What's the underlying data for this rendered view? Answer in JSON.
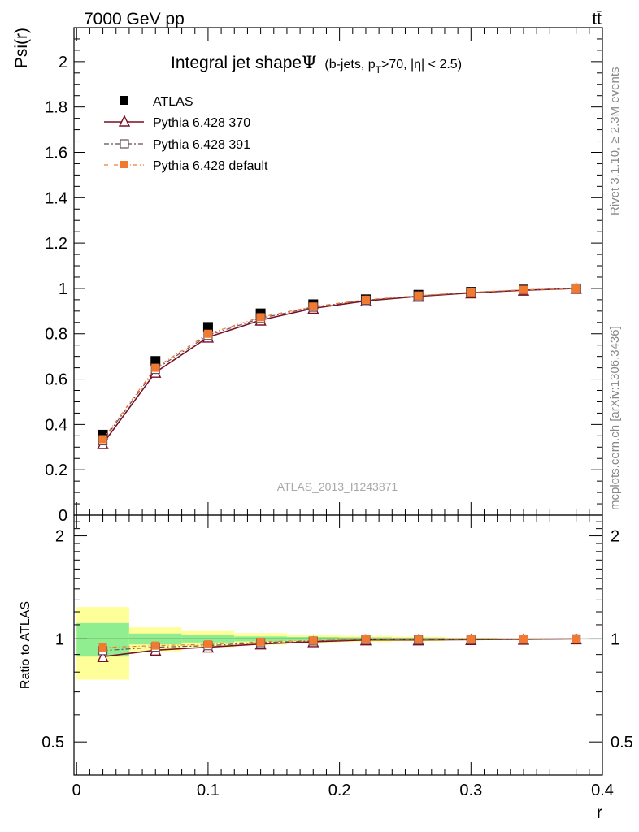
{
  "header": {
    "energy_label": "7000 GeV pp",
    "process_label": "tt̄",
    "side_label_top": "Rivet 3.1.10, ≥ 2.3M events",
    "side_label_bottom": "mcplots.cern.ch [arXiv:1306.3436]",
    "watermark": "ATLAS_2013_I1243871"
  },
  "chart_data": {
    "type": "line",
    "title_main": "Integral jet shape",
    "title_symbol": "Ψ",
    "title_cuts_prefix": "(b-jets, p",
    "title_cuts_sub": "T",
    "title_cuts_suffix": ">70, |η| < 2.5)",
    "xlabel": "r",
    "ylabel": "Psi(r)",
    "ratio_ylabel": "Ratio to ATLAS",
    "xlim": [
      -0.002,
      0.4
    ],
    "ylim": [
      0,
      2.15
    ],
    "ratio_ylim": [
      0.4,
      2.3
    ],
    "x_ticks": [
      0,
      0.1,
      0.2,
      0.3,
      0.4
    ],
    "x_tick_labels": [
      "0",
      "0.1",
      "0.2",
      "0.3",
      "0.4"
    ],
    "y_ticks": [
      0,
      0.2,
      0.4,
      0.6,
      0.8,
      1,
      1.2,
      1.4,
      1.6,
      1.8,
      2
    ],
    "y_tick_labels": [
      "0",
      "0.2",
      "0.4",
      "0.6",
      "0.8",
      "1",
      "1.2",
      "1.4",
      "1.6",
      "1.8",
      "2"
    ],
    "ratio_ticks": [
      0.5,
      1,
      2
    ],
    "ratio_tick_labels": [
      "0.5",
      "1",
      "2"
    ],
    "x": [
      0.02,
      0.06,
      0.1,
      0.14,
      0.18,
      0.22,
      0.26,
      0.3,
      0.34,
      0.38
    ],
    "bin_edges": [
      0,
      0.04,
      0.08,
      0.12,
      0.16,
      0.2,
      0.24,
      0.28,
      0.32,
      0.36,
      0.4
    ],
    "data": {
      "name": "ATLAS",
      "values": [
        0.355,
        0.68,
        0.83,
        0.89,
        0.93,
        0.952,
        0.972,
        0.985,
        0.995,
        1.0
      ],
      "band_inner": [
        0.04,
        0.025,
        0.02,
        0.015,
        0.012,
        0.01,
        0.008,
        0.005,
        0.003,
        0.001
      ],
      "band_outer": [
        0.085,
        0.055,
        0.045,
        0.035,
        0.025,
        0.02,
        0.015,
        0.008,
        0.004,
        0.002
      ]
    },
    "series": [
      {
        "name": "Pythia 6.428 370",
        "color": "#7a0f23",
        "marker": "triangle-open",
        "dash": "",
        "values": [
          0.315,
          0.63,
          0.785,
          0.86,
          0.912,
          0.945,
          0.965,
          0.98,
          0.992,
          1.0
        ]
      },
      {
        "name": "Pythia 6.428 391",
        "color": "#6b4a5a",
        "marker": "square-open",
        "dash": "6,3,2,3",
        "values": [
          0.328,
          0.643,
          0.793,
          0.868,
          0.917,
          0.948,
          0.967,
          0.982,
          0.993,
          1.0
        ]
      },
      {
        "name": "Pythia 6.428 default",
        "color": "#f07a30",
        "marker": "square-filled",
        "dash": "5,3,1,3",
        "values": [
          0.335,
          0.65,
          0.8,
          0.873,
          0.92,
          0.95,
          0.968,
          0.983,
          0.994,
          1.0
        ]
      }
    ],
    "legend_position": "top-left",
    "colors": {
      "band_inner": "#90ee90",
      "band_outer": "#ffff99",
      "data_marker": "#000000"
    }
  }
}
